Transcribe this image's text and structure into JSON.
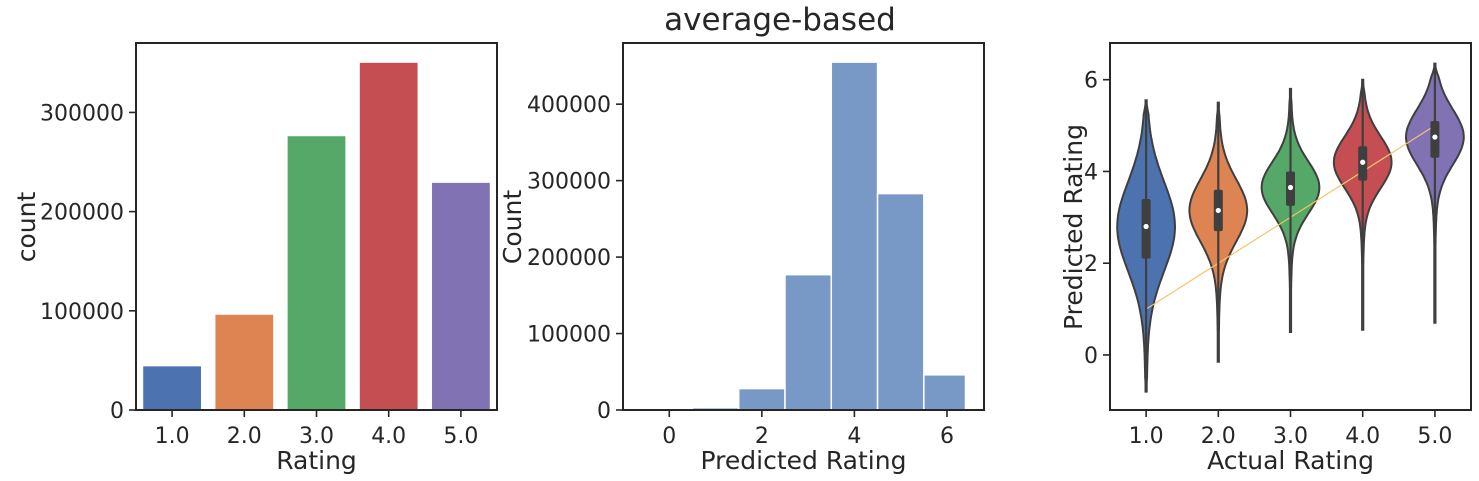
{
  "figure": {
    "title": "average-based"
  },
  "chart_data": [
    {
      "type": "bar",
      "xlabel": "Rating",
      "ylabel": "count",
      "categories": [
        "1.0",
        "2.0",
        "3.0",
        "4.0",
        "5.0"
      ],
      "values": [
        44000,
        96000,
        276000,
        350000,
        229000
      ],
      "colors": [
        "#4c72b0",
        "#dd8452",
        "#55a868",
        "#c44e52",
        "#8172b3"
      ],
      "ylim": [
        0,
        370000
      ],
      "yticks": [
        0,
        100000,
        200000,
        300000
      ],
      "ytick_labels": [
        "0",
        "100000",
        "200000",
        "300000"
      ],
      "grid": false
    },
    {
      "type": "bar",
      "subtype": "histogram",
      "xlabel": "Predicted Rating",
      "ylabel": "Count",
      "bins": [
        {
          "x0": 0.0,
          "x1": 0.5,
          "count": 500
        },
        {
          "x0": 0.5,
          "x1": 1.5,
          "count": 3000
        },
        {
          "x0": 1.5,
          "x1": 2.5,
          "count": 28000
        },
        {
          "x0": 2.5,
          "x1": 3.5,
          "count": 177000
        },
        {
          "x0": 3.5,
          "x1": 4.5,
          "count": 455000
        },
        {
          "x0": 4.5,
          "x1": 5.5,
          "count": 283000
        },
        {
          "x0": 5.5,
          "x1": 6.4,
          "count": 46000
        }
      ],
      "color": "#7898c6",
      "xlim": [
        -1.0,
        6.8
      ],
      "ylim": [
        0,
        480000
      ],
      "xticks": [
        0,
        2,
        4,
        6
      ],
      "xtick_labels": [
        "0",
        "2",
        "4",
        "6"
      ],
      "yticks": [
        0,
        100000,
        200000,
        300000,
        400000
      ],
      "ytick_labels": [
        "0",
        "100000",
        "200000",
        "300000",
        "400000"
      ],
      "grid": false
    },
    {
      "type": "violin",
      "xlabel": "Actual Rating",
      "ylabel": "Predicted Rating",
      "categories": [
        "1.0",
        "2.0",
        "3.0",
        "4.0",
        "5.0"
      ],
      "colors": [
        "#4c72b0",
        "#dd8452",
        "#55a868",
        "#c44e52",
        "#8172b3"
      ],
      "violins": [
        {
          "min": -0.8,
          "max": 5.55,
          "q1": 2.1,
          "median": 2.8,
          "q3": 3.4
        },
        {
          "min": -0.15,
          "max": 5.5,
          "q1": 2.7,
          "median": 3.15,
          "q3": 3.6
        },
        {
          "min": 0.5,
          "max": 5.8,
          "q1": 3.25,
          "median": 3.65,
          "q3": 4.0
        },
        {
          "min": 0.55,
          "max": 6.0,
          "q1": 3.8,
          "median": 4.2,
          "q3": 4.55
        },
        {
          "min": 0.7,
          "max": 6.35,
          "q1": 4.3,
          "median": 4.75,
          "q3": 5.1
        }
      ],
      "reference_line": {
        "x": [
          1.0,
          5.0
        ],
        "y": [
          1.0,
          5.0
        ],
        "color": "#f5c46a"
      },
      "ylim": [
        -1.2,
        6.8
      ],
      "yticks": [
        0,
        2,
        4,
        6
      ],
      "ytick_labels": [
        "0",
        "2",
        "4",
        "6"
      ],
      "grid": false
    }
  ]
}
